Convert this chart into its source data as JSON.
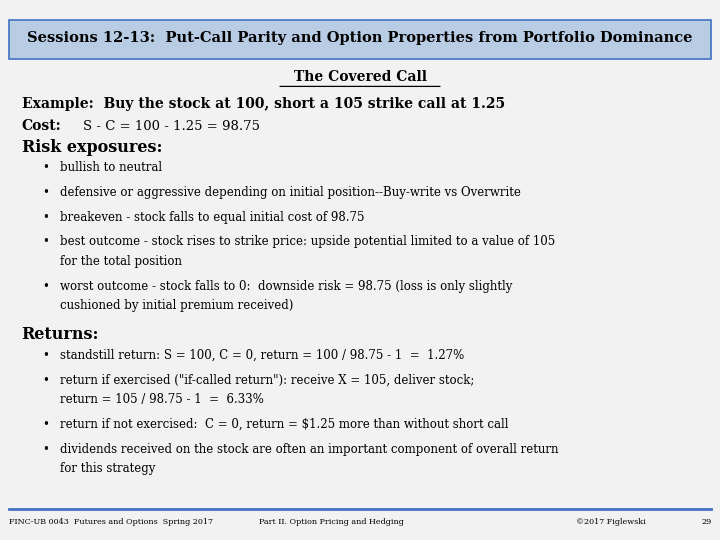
{
  "title": "Sessions 12-13:  Put-Call Parity and Option Properties from Portfolio Dominance",
  "title_bg": "#b8cce4",
  "title_border": "#4472c4",
  "subtitle": "The Covered Call",
  "example_line": "Example:  Buy the stock at 100, short a 105 strike call at 1.25",
  "cost_label": "Cost:",
  "cost_value": "S - C = 100 - 1.25 = 98.75",
  "risk_header": "Risk exposures:",
  "risk_bullets": [
    "bullish to neutral",
    "defensive or aggressive depending on initial position--Buy-write vs Overwrite",
    "breakeven - stock falls to equal initial cost of 98.75",
    "best outcome - stock rises to strike price: upside potential limited to a value of 105|    for the total position",
    "worst outcome - stock falls to 0:  downside risk = 98.75 (loss is only slightly|    cushioned by initial premium received)"
  ],
  "returns_header": "Returns:",
  "returns_bullets": [
    "standstill return: S = 100, C = 0, return = 100 / 98.75 - 1  =  1.27%",
    "return if exercised (\"if-called return\"): receive X = 105, deliver stock;|    return = 105 / 98.75 - 1  =  6.33%",
    "return if not exercised:  C = 0, return = $1.25 more than without short call",
    "dividends received on the stock are often an important component of overall return|    for this strategy"
  ],
  "footer_left": "FINC-UB 0043  Futures and Options  Spring 2017",
  "footer_center": "Part II. Option Pricing and Hedging",
  "footer_right": "©2017 Figlewski",
  "footer_page": "29",
  "bg_color": "#f2f2f2",
  "footer_line_color": "#4472c4",
  "body_bg": "#ffffff"
}
